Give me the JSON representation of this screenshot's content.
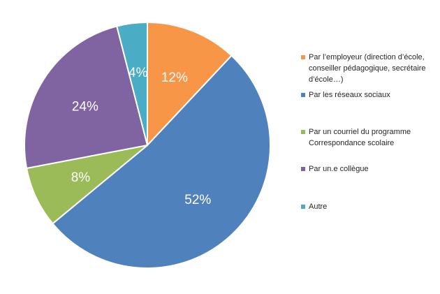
{
  "chart_data": {
    "type": "pie",
    "title": "",
    "categories": [
      "Par l’employeur (direction d’école, conseiller pédagogique, secrétaire d’école…)",
      "Par les réseaux sociaux",
      "Par un courriel du programme Correspondance scolaire",
      "Par un.e collègue",
      "Autre"
    ],
    "legend_lines": [
      "Par l’employeur (direction d’école,\nconseiller pédagogique, secrétaire\nd’école…)",
      "Par les réseaux sociaux",
      "Par un courriel du programme\nCorrespondance scolaire",
      "Par un.e collègue",
      "Autre"
    ],
    "values": [
      12,
      52,
      8,
      24,
      4
    ],
    "data_labels": [
      "12%",
      "52%",
      "8%",
      "24%",
      "4%"
    ],
    "colors": [
      "#F79646",
      "#4F81BD",
      "#9BBB59",
      "#8064A2",
      "#4BACC6"
    ],
    "start_angle": "12 o'clock, clockwise",
    "legend_position": "right"
  }
}
